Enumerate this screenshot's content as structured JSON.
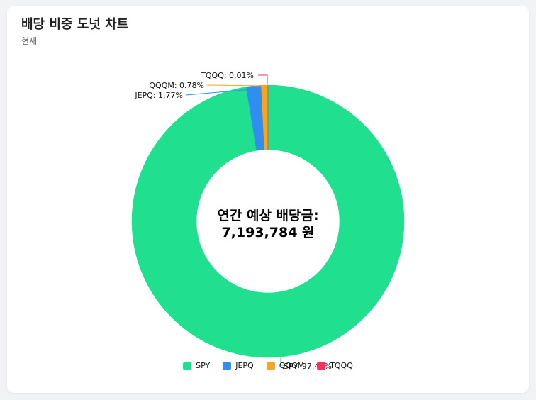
{
  "header": {
    "title": "배당 비중 도넛 차트",
    "subtitle": "현재"
  },
  "chart_data": {
    "type": "pie",
    "donut": true,
    "title": "배당 비중 도넛 차트",
    "subtitle": "현재",
    "center_text": [
      "연간 예상 배당금:",
      "7,193,784 원"
    ],
    "slices": [
      {
        "name": "SPY",
        "percent": 97.44,
        "label": "SPY: 97.44%",
        "color": "#20df8e"
      },
      {
        "name": "JEPQ",
        "percent": 1.77,
        "label": "JEPQ: 1.77%",
        "color": "#2f8ef0"
      },
      {
        "name": "QQQM",
        "percent": 0.78,
        "label": "QQQM: 0.78%",
        "color": "#f5a524"
      },
      {
        "name": "TQQQ",
        "percent": 0.01,
        "label": "TQQQ: 0.01%",
        "color": "#f0355a"
      }
    ],
    "legend_position": "bottom"
  }
}
